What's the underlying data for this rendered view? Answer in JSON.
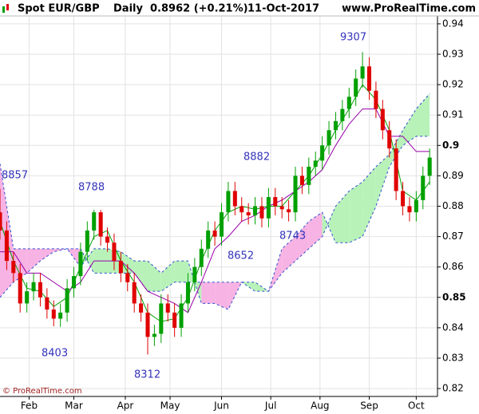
{
  "chart_data": {
    "type": "candlestick",
    "header": {
      "symbol": "Spot EUR/GBP",
      "period": "Daily",
      "price": "0.8962 (+0.21%)",
      "date": "11-Oct-2017",
      "site": "www.ProRealTime.com"
    },
    "footer": "© ProRealTime.com",
    "annotations": [
      "8857",
      "8788",
      "8403",
      "8312",
      "8652",
      "8743",
      "8882",
      "9307"
    ],
    "xlim": [
      0,
      195.5
    ],
    "ylim": [
      0.8174,
      0.9426
    ],
    "grid": true,
    "xticks": [
      {
        "value": 13,
        "label": "Feb"
      },
      {
        "value": 33,
        "label": "Mar"
      },
      {
        "value": 56,
        "label": "Apr"
      },
      {
        "value": 76,
        "label": "May"
      },
      {
        "value": 99,
        "label": "Jun"
      },
      {
        "value": 121,
        "label": "Jul"
      },
      {
        "value": 143,
        "label": "Aug"
      },
      {
        "value": 165,
        "label": "Sep"
      },
      {
        "value": 186,
        "label": "Oct"
      }
    ],
    "yticks": [
      0.82,
      0.83,
      0.84,
      0.85,
      0.86,
      0.87,
      0.88,
      0.89,
      0.9,
      0.91,
      0.92,
      0.93,
      0.94
    ],
    "up_color": "#00a000",
    "down_color": "#e00000",
    "x": [
      0,
      3,
      6,
      9,
      12,
      15,
      18,
      21,
      24,
      27,
      30,
      33,
      36,
      39,
      42,
      45,
      48,
      51,
      54,
      57,
      60,
      63,
      66,
      69,
      72,
      75,
      78,
      81,
      84,
      87,
      90,
      93,
      96,
      99,
      102,
      105,
      108,
      111,
      114,
      117,
      120,
      123,
      126,
      129,
      132,
      135,
      138,
      141,
      144,
      147,
      150,
      153,
      156,
      159,
      162,
      165,
      168,
      171,
      174,
      177,
      180,
      183,
      186,
      189,
      192
    ],
    "open": [
      0.878,
      0.872,
      0.862,
      0.858,
      0.848,
      0.852,
      0.855,
      0.85,
      0.846,
      0.843,
      0.845,
      0.853,
      0.857,
      0.865,
      0.872,
      0.878,
      0.87,
      0.868,
      0.862,
      0.858,
      0.855,
      0.848,
      0.845,
      0.837,
      0.838,
      0.848,
      0.845,
      0.84,
      0.848,
      0.855,
      0.86,
      0.866,
      0.872,
      0.87,
      0.878,
      0.885,
      0.88,
      0.878,
      0.877,
      0.88,
      0.876,
      0.883,
      0.88,
      0.879,
      0.878,
      0.89,
      0.887,
      0.893,
      0.895,
      0.9,
      0.905,
      0.908,
      0.912,
      0.916,
      0.922,
      0.926,
      0.918,
      0.912,
      0.905,
      0.899,
      0.885,
      0.88,
      0.878,
      0.882,
      0.89
    ],
    "high": [
      0.8857,
      0.875,
      0.865,
      0.861,
      0.855,
      0.858,
      0.858,
      0.853,
      0.849,
      0.848,
      0.856,
      0.86,
      0.868,
      0.875,
      0.8788,
      0.8788,
      0.873,
      0.871,
      0.865,
      0.861,
      0.858,
      0.851,
      0.848,
      0.841,
      0.851,
      0.851,
      0.848,
      0.851,
      0.858,
      0.863,
      0.869,
      0.875,
      0.875,
      0.881,
      0.888,
      0.888,
      0.883,
      0.881,
      0.883,
      0.883,
      0.886,
      0.886,
      0.883,
      0.882,
      0.893,
      0.893,
      0.896,
      0.898,
      0.903,
      0.908,
      0.911,
      0.915,
      0.919,
      0.925,
      0.9307,
      0.929,
      0.921,
      0.915,
      0.908,
      0.902,
      0.888,
      0.883,
      0.885,
      0.893,
      0.899
    ],
    "low": [
      0.869,
      0.859,
      0.855,
      0.845,
      0.845,
      0.849,
      0.847,
      0.843,
      0.8405,
      0.8403,
      0.842,
      0.85,
      0.854,
      0.862,
      0.869,
      0.867,
      0.865,
      0.859,
      0.855,
      0.852,
      0.845,
      0.842,
      0.8312,
      0.834,
      0.835,
      0.842,
      0.837,
      0.837,
      0.845,
      0.852,
      0.857,
      0.863,
      0.867,
      0.867,
      0.875,
      0.877,
      0.875,
      0.874,
      0.874,
      0.873,
      0.873,
      0.877,
      0.876,
      0.875,
      0.875,
      0.884,
      0.884,
      0.89,
      0.892,
      0.897,
      0.902,
      0.905,
      0.909,
      0.913,
      0.919,
      0.915,
      0.909,
      0.902,
      0.896,
      0.882,
      0.877,
      0.875,
      0.875,
      0.879,
      0.887
    ],
    "close": [
      0.872,
      0.862,
      0.858,
      0.848,
      0.852,
      0.855,
      0.85,
      0.846,
      0.843,
      0.845,
      0.853,
      0.857,
      0.865,
      0.872,
      0.878,
      0.87,
      0.868,
      0.862,
      0.858,
      0.855,
      0.848,
      0.845,
      0.837,
      0.838,
      0.848,
      0.845,
      0.84,
      0.848,
      0.855,
      0.86,
      0.866,
      0.872,
      0.87,
      0.878,
      0.885,
      0.88,
      0.878,
      0.877,
      0.88,
      0.876,
      0.883,
      0.88,
      0.879,
      0.878,
      0.89,
      0.887,
      0.893,
      0.895,
      0.9,
      0.905,
      0.908,
      0.912,
      0.916,
      0.922,
      0.926,
      0.918,
      0.912,
      0.905,
      0.899,
      0.885,
      0.88,
      0.878,
      0.882,
      0.89,
      0.896
    ],
    "cloud": {
      "x": [
        0,
        6,
        12,
        18,
        24,
        30,
        36,
        42,
        48,
        54,
        60,
        66,
        72,
        78,
        84,
        90,
        96,
        102,
        108,
        114,
        120,
        126,
        132,
        138,
        144,
        150,
        156,
        162,
        168,
        174,
        180,
        186,
        192
      ],
      "span_a": [
        0.85,
        0.855,
        0.858,
        0.862,
        0.865,
        0.866,
        0.86,
        0.866,
        0.866,
        0.865,
        0.862,
        0.862,
        0.858,
        0.862,
        0.862,
        0.848,
        0.848,
        0.846,
        0.855,
        0.855,
        0.852,
        0.858,
        0.862,
        0.866,
        0.87,
        0.88,
        0.885,
        0.888,
        0.893,
        0.897,
        0.905,
        0.912,
        0.917
      ],
      "span_b": [
        0.894,
        0.866,
        0.866,
        0.866,
        0.866,
        0.866,
        0.866,
        0.858,
        0.858,
        0.858,
        0.858,
        0.852,
        0.852,
        0.855,
        0.855,
        0.855,
        0.855,
        0.855,
        0.855,
        0.852,
        0.852,
        0.866,
        0.87,
        0.875,
        0.878,
        0.868,
        0.868,
        0.87,
        0.88,
        0.893,
        0.9,
        0.903,
        0.903
      ],
      "color_up": "#b8f2b8",
      "color_down": "#f7b3e3",
      "edge_color": "#3050d0"
    },
    "overlays": [
      {
        "color": "#00a000",
        "x": [
          0,
          6,
          12,
          18,
          24,
          30,
          36,
          42,
          48,
          54,
          60,
          66,
          72,
          78,
          84,
          90,
          96,
          102,
          108,
          114,
          120,
          126,
          132,
          138,
          144,
          150,
          156,
          162,
          168,
          174,
          180,
          186,
          192
        ],
        "values": [
          0.875,
          0.862,
          0.853,
          0.852,
          0.847,
          0.85,
          0.86,
          0.87,
          0.872,
          0.862,
          0.855,
          0.845,
          0.842,
          0.843,
          0.85,
          0.862,
          0.872,
          0.878,
          0.88,
          0.879,
          0.88,
          0.88,
          0.885,
          0.89,
          0.897,
          0.905,
          0.912,
          0.92,
          0.915,
          0.905,
          0.885,
          0.882,
          0.888
        ]
      },
      {
        "color": "#9900aa",
        "x": [
          0,
          6,
          12,
          18,
          24,
          30,
          36,
          42,
          48,
          54,
          60,
          66,
          72,
          78,
          84,
          90,
          96,
          102,
          108,
          114,
          120,
          126,
          132,
          138,
          144,
          150,
          156,
          162,
          168,
          174,
          180,
          186,
          192
        ],
        "values": [
          0.865,
          0.865,
          0.858,
          0.858,
          0.855,
          0.852,
          0.855,
          0.862,
          0.862,
          0.862,
          0.858,
          0.852,
          0.85,
          0.848,
          0.845,
          0.855,
          0.866,
          0.87,
          0.875,
          0.877,
          0.88,
          0.882,
          0.885,
          0.888,
          0.892,
          0.9,
          0.907,
          0.912,
          0.912,
          0.903,
          0.903,
          0.898,
          0.898
        ]
      }
    ]
  }
}
